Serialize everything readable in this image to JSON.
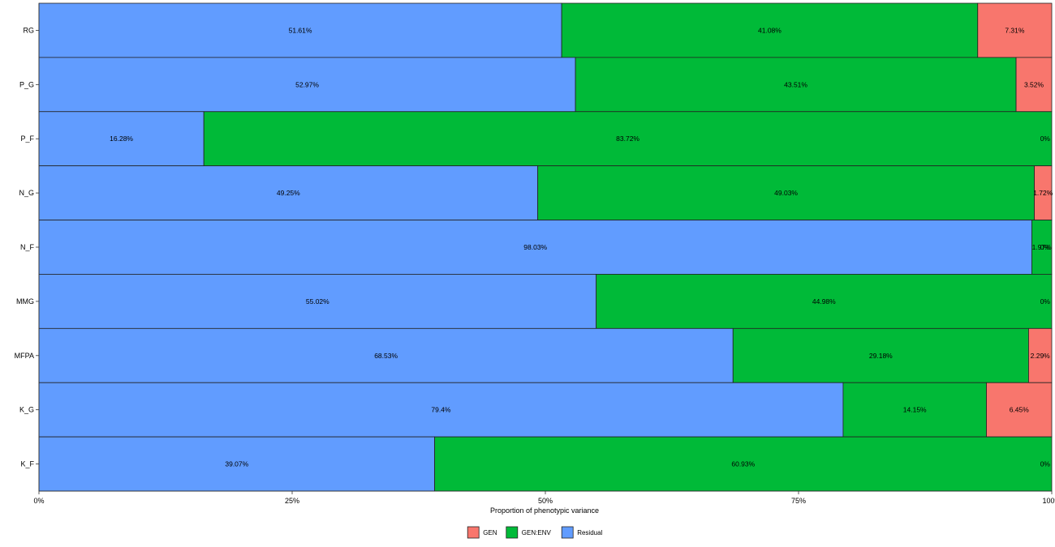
{
  "chart_data": {
    "type": "bar",
    "orientation": "horizontal",
    "stacked": "percent",
    "categories": [
      "RG",
      "P_G",
      "P_F",
      "N_G",
      "N_F",
      "MMG",
      "MFPA",
      "K_G",
      "K_F"
    ],
    "series": [
      {
        "name": "Residual",
        "color": "#619CFF",
        "values": [
          51.61,
          52.97,
          16.28,
          49.25,
          98.03,
          55.02,
          68.53,
          79.4,
          39.07
        ],
        "labels": [
          "51.61%",
          "52.97%",
          "16.28%",
          "49.25%",
          "98.03%",
          "55.02%",
          "68.53%",
          "79.4%",
          "39.07%"
        ]
      },
      {
        "name": "GEN:ENV",
        "color": "#00BA38",
        "values": [
          41.08,
          43.51,
          83.72,
          49.03,
          1.97,
          44.98,
          29.18,
          14.15,
          60.93
        ],
        "labels": [
          "41.08%",
          "43.51%",
          "83.72%",
          "49.03%",
          "1.97%",
          "44.98%",
          "29.18%",
          "14.15%",
          "60.93%"
        ]
      },
      {
        "name": "GEN",
        "color": "#F8766D",
        "values": [
          7.31,
          3.52,
          0,
          1.72,
          0,
          0,
          2.29,
          6.45,
          0
        ],
        "labels": [
          "7.31%",
          "3.52%",
          "0%",
          "1.72%",
          "0%",
          "0%",
          "2.29%",
          "6.45%",
          "0%"
        ]
      }
    ],
    "xlabel": "Proportion of phenotypic variance",
    "ylabel": "",
    "xlim": [
      0,
      100
    ],
    "xticks": [
      "0%",
      "25%",
      "50%",
      "75%",
      "100%"
    ],
    "legend": {
      "placement": "bottom",
      "entries": [
        {
          "name": "GEN",
          "color": "#F8766D"
        },
        {
          "name": "GEN:ENV",
          "color": "#00BA38"
        },
        {
          "name": "Residual",
          "color": "#619CFF"
        }
      ]
    },
    "grid": false
  }
}
